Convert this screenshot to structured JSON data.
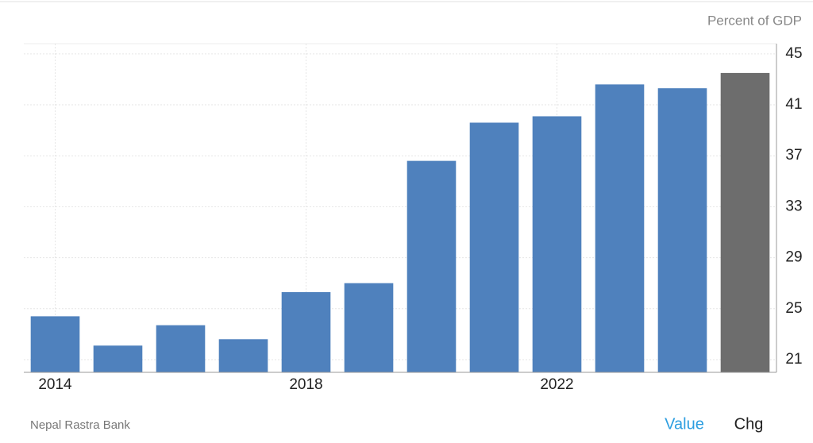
{
  "chart_data": {
    "type": "bar",
    "unit_label": "Percent of GDP",
    "source": "Nepal Rastra Bank",
    "categories": [
      "2014",
      null,
      null,
      null,
      "2018",
      null,
      null,
      null,
      "2022",
      null,
      null,
      null
    ],
    "values": [
      24.4,
      22.1,
      23.7,
      22.6,
      26.3,
      27.0,
      36.6,
      39.6,
      40.1,
      42.6,
      42.3,
      43.5
    ],
    "colors": [
      "#4f81bd",
      "#4f81bd",
      "#4f81bd",
      "#4f81bd",
      "#4f81bd",
      "#4f81bd",
      "#4f81bd",
      "#4f81bd",
      "#4f81bd",
      "#4f81bd",
      "#4f81bd",
      "#6d6d6d"
    ],
    "ylim": [
      20,
      45.8
    ],
    "yticks": [
      21,
      25,
      29,
      33,
      37,
      41,
      45
    ],
    "grid": true
  },
  "tabs": [
    "Value",
    "Chg"
  ]
}
